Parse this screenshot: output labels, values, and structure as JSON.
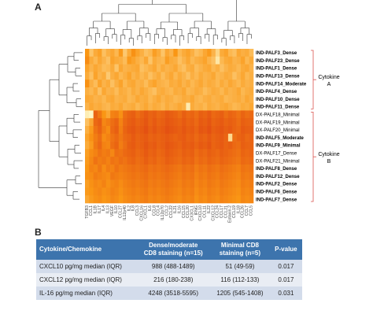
{
  "panel_a_letter": "A",
  "panel_b_letter": "B",
  "chart_data": {
    "type": "heatmap",
    "title": "",
    "rows": [
      {
        "label": "IND-PALF3_Dense",
        "bold": true
      },
      {
        "label": "IND-PALF23_Dense",
        "bold": true
      },
      {
        "label": "IND-PALF1_Dense",
        "bold": true
      },
      {
        "label": "IND-PALF13_Dense",
        "bold": true
      },
      {
        "label": "IND-PALF14_Moderate",
        "bold": true
      },
      {
        "label": "IND-PALF4_Dense",
        "bold": true
      },
      {
        "label": "IND-PALF10_Dense",
        "bold": true
      },
      {
        "label": "IND-PALF11_Dense",
        "bold": true
      },
      {
        "label": "DX-PALF18_Minimal",
        "bold": false
      },
      {
        "label": "DX-PALF19_Minimal",
        "bold": false
      },
      {
        "label": "DX-PALF20_Minimal",
        "bold": false
      },
      {
        "label": "IND-PALF5_Moderate",
        "bold": true
      },
      {
        "label": "IND-PALF9_Minimal",
        "bold": true
      },
      {
        "label": "DX-PALF17_Dense",
        "bold": false
      },
      {
        "label": "DX-PALF21_Minimal",
        "bold": false
      },
      {
        "label": "IND-PALF8_Dense",
        "bold": true
      },
      {
        "label": "IND-PALF12_Dense",
        "bold": true
      },
      {
        "label": "IND-PALF2_Dense",
        "bold": true
      },
      {
        "label": "IND-PALF6_Dense",
        "bold": true
      },
      {
        "label": "IND-PALF7_Dense",
        "bold": true
      }
    ],
    "columns": [
      "TGFB3",
      "CCL1",
      "IL1B",
      "IL17",
      "IL4",
      "IL13",
      "VEGF",
      "IL10",
      "CCL27",
      "IL12p40",
      "IL2",
      "IL8",
      "CCL3",
      "CXCL16",
      "CXCL1",
      "IL6",
      "CCL8",
      "CCL4",
      "IL12p70",
      "CCL2",
      "CCL22",
      "IL21",
      "IL16",
      "CCL15",
      "CCL20",
      "CX3CL1",
      "IFNG",
      "CXCL10",
      "CCL11",
      "IL22",
      "CXCL12",
      "CCL24",
      "CCL17",
      "CCL21",
      "Eotaxin-2",
      "CCL19",
      "IL18",
      "CCL26",
      "CCL7",
      "CCL5"
    ],
    "values": [
      [
        0.5,
        0.72,
        0.6,
        0.55,
        0.7,
        0.62,
        0.58,
        0.66,
        0.52,
        0.74,
        0.6,
        0.48,
        0.56,
        0.62,
        0.7,
        0.66,
        0.54,
        0.6,
        0.72,
        0.58,
        0.64,
        0.5,
        0.66,
        0.6,
        0.56,
        0.62,
        0.7,
        0.66,
        0.58,
        0.52,
        0.64,
        0.8,
        0.6,
        0.56,
        0.66,
        0.7,
        0.58,
        0.62,
        0.6,
        0.68
      ],
      [
        0.46,
        0.6,
        0.66,
        0.58,
        0.64,
        0.7,
        0.56,
        0.6,
        0.62,
        0.68,
        0.52,
        0.56,
        0.62,
        0.66,
        0.58,
        0.72,
        0.6,
        0.64,
        0.66,
        0.54,
        0.6,
        0.62,
        0.7,
        0.64,
        0.58,
        0.66,
        0.62,
        0.6,
        0.56,
        0.64,
        0.7,
        0.88,
        0.66,
        0.6,
        0.58,
        0.64,
        0.62,
        0.56,
        0.66,
        0.6
      ],
      [
        0.56,
        0.64,
        0.58,
        0.62,
        0.68,
        0.66,
        0.6,
        0.72,
        0.58,
        0.64,
        0.62,
        0.6,
        0.58,
        0.7,
        0.66,
        0.62,
        0.58,
        0.66,
        0.6,
        0.64,
        0.62,
        0.58,
        0.66,
        0.7,
        0.62,
        0.6,
        0.68,
        0.64,
        0.6,
        0.58,
        0.66,
        0.62,
        0.7,
        0.64,
        0.6,
        0.62,
        0.66,
        0.6,
        0.58,
        0.64
      ],
      [
        0.6,
        0.7,
        0.56,
        0.64,
        0.6,
        0.74,
        0.62,
        0.58,
        0.66,
        0.62,
        0.56,
        0.64,
        0.6,
        0.66,
        0.62,
        0.7,
        0.64,
        0.6,
        0.68,
        0.62,
        0.58,
        0.66,
        0.6,
        0.64,
        0.7,
        0.62,
        0.66,
        0.6,
        0.64,
        0.62,
        0.58,
        0.66,
        0.64,
        0.6,
        0.62,
        0.7,
        0.64,
        0.58,
        0.66,
        0.62
      ],
      [
        0.48,
        0.62,
        0.68,
        0.56,
        0.64,
        0.6,
        0.7,
        0.62,
        0.56,
        0.66,
        0.6,
        0.58,
        0.64,
        0.62,
        0.68,
        0.6,
        0.56,
        0.62,
        0.64,
        0.66,
        0.6,
        0.62,
        0.58,
        0.64,
        0.6,
        0.66,
        0.62,
        0.58,
        0.64,
        0.6,
        0.62,
        0.66,
        0.6,
        0.64,
        0.58,
        0.62,
        0.66,
        0.6,
        0.64,
        0.62
      ],
      [
        0.62,
        0.66,
        0.6,
        0.7,
        0.58,
        0.64,
        0.62,
        0.68,
        0.6,
        0.62,
        0.66,
        0.6,
        0.64,
        0.58,
        0.62,
        0.66,
        0.7,
        0.62,
        0.6,
        0.64,
        0.66,
        0.6,
        0.62,
        0.58,
        0.66,
        0.64,
        0.6,
        0.62,
        0.68,
        0.64,
        0.6,
        0.62,
        0.66,
        0.6,
        0.64,
        0.62,
        0.58,
        0.66,
        0.62,
        0.6
      ],
      [
        0.58,
        0.6,
        0.64,
        0.62,
        0.66,
        0.6,
        0.58,
        0.64,
        0.62,
        0.6,
        0.66,
        0.64,
        0.58,
        0.62,
        0.6,
        0.66,
        0.62,
        0.58,
        0.64,
        0.6,
        0.62,
        0.66,
        0.64,
        0.6,
        0.62,
        0.58,
        0.64,
        0.66,
        0.62,
        0.6,
        0.64,
        0.62,
        0.6,
        0.66,
        0.64,
        0.62,
        0.6,
        0.64,
        0.58,
        0.62
      ],
      [
        0.64,
        0.58,
        0.62,
        0.6,
        0.64,
        0.66,
        0.6,
        0.62,
        0.58,
        0.64,
        0.62,
        0.6,
        0.66,
        0.62,
        0.58,
        0.64,
        0.6,
        0.62,
        0.66,
        0.6,
        0.64,
        0.62,
        0.58,
        0.62,
        0.9,
        0.6,
        0.64,
        0.62,
        0.66,
        0.6,
        0.62,
        0.64,
        0.6,
        0.58,
        0.62,
        0.66,
        0.64,
        0.6,
        0.62,
        0.58
      ],
      [
        0.92,
        0.96,
        0.3,
        0.38,
        0.5,
        0.58,
        0.42,
        0.4,
        0.48,
        0.34,
        0.3,
        0.28,
        0.34,
        0.3,
        0.26,
        0.3,
        0.28,
        0.32,
        0.3,
        0.26,
        0.28,
        0.3,
        0.34,
        0.28,
        0.32,
        0.3,
        0.34,
        0.28,
        0.3,
        0.26,
        0.32,
        0.3,
        0.28,
        0.34,
        0.3,
        0.32,
        0.36,
        0.3,
        0.34,
        0.32
      ],
      [
        0.7,
        0.58,
        0.32,
        0.28,
        0.44,
        0.4,
        0.34,
        0.3,
        0.42,
        0.32,
        0.28,
        0.26,
        0.3,
        0.28,
        0.24,
        0.3,
        0.26,
        0.3,
        0.28,
        0.24,
        0.26,
        0.28,
        0.3,
        0.26,
        0.3,
        0.28,
        0.32,
        0.26,
        0.28,
        0.24,
        0.3,
        0.28,
        0.26,
        0.3,
        0.28,
        0.3,
        0.34,
        0.28,
        0.3,
        0.3
      ],
      [
        0.62,
        0.52,
        0.36,
        0.3,
        0.4,
        0.46,
        0.32,
        0.28,
        0.4,
        0.3,
        0.26,
        0.24,
        0.28,
        0.26,
        0.22,
        0.28,
        0.24,
        0.28,
        0.26,
        0.22,
        0.24,
        0.26,
        0.28,
        0.24,
        0.28,
        0.26,
        0.3,
        0.24,
        0.26,
        0.22,
        0.28,
        0.26,
        0.24,
        0.28,
        0.26,
        0.3,
        0.32,
        0.26,
        0.28,
        0.28
      ],
      [
        0.56,
        0.48,
        0.4,
        0.34,
        0.46,
        0.42,
        0.36,
        0.32,
        0.38,
        0.32,
        0.3,
        0.26,
        0.3,
        0.28,
        0.26,
        0.3,
        0.28,
        0.3,
        0.28,
        0.26,
        0.28,
        0.3,
        0.28,
        0.26,
        0.3,
        0.28,
        0.32,
        0.28,
        0.3,
        0.26,
        0.3,
        0.28,
        0.26,
        0.3,
        0.82,
        0.34,
        0.3,
        0.28,
        0.32,
        0.3
      ],
      [
        0.6,
        0.52,
        0.38,
        0.32,
        0.42,
        0.44,
        0.34,
        0.3,
        0.4,
        0.34,
        0.28,
        0.26,
        0.3,
        0.28,
        0.24,
        0.28,
        0.26,
        0.3,
        0.28,
        0.24,
        0.26,
        0.28,
        0.3,
        0.26,
        0.28,
        0.26,
        0.3,
        0.26,
        0.28,
        0.24,
        0.3,
        0.28,
        0.26,
        0.3,
        0.28,
        0.32,
        0.34,
        0.28,
        0.3,
        0.3
      ],
      [
        0.54,
        0.46,
        0.42,
        0.36,
        0.4,
        0.38,
        0.44,
        0.34,
        0.36,
        0.32,
        0.3,
        0.28,
        0.32,
        0.3,
        0.26,
        0.3,
        0.28,
        0.32,
        0.3,
        0.26,
        0.28,
        0.3,
        0.32,
        0.28,
        0.3,
        0.28,
        0.34,
        0.3,
        0.32,
        0.28,
        0.3,
        0.32,
        0.28,
        0.3,
        0.32,
        0.34,
        0.36,
        0.3,
        0.32,
        0.3
      ],
      [
        0.52,
        0.44,
        0.36,
        0.4,
        0.38,
        0.42,
        0.36,
        0.38,
        0.34,
        0.36,
        0.32,
        0.3,
        0.34,
        0.32,
        0.28,
        0.32,
        0.3,
        0.34,
        0.32,
        0.28,
        0.3,
        0.32,
        0.34,
        0.3,
        0.32,
        0.3,
        0.36,
        0.32,
        0.34,
        0.3,
        0.32,
        0.34,
        0.3,
        0.32,
        0.34,
        0.36,
        0.38,
        0.32,
        0.34,
        0.32
      ],
      [
        0.5,
        0.42,
        0.44,
        0.38,
        0.46,
        0.4,
        0.42,
        0.36,
        0.4,
        0.38,
        0.36,
        0.34,
        0.36,
        0.34,
        0.32,
        0.36,
        0.34,
        0.36,
        0.34,
        0.32,
        0.34,
        0.36,
        0.38,
        0.34,
        0.36,
        0.34,
        0.4,
        0.36,
        0.38,
        0.34,
        0.36,
        0.38,
        0.34,
        0.36,
        0.38,
        0.4,
        0.42,
        0.36,
        0.38,
        0.36
      ],
      [
        0.48,
        0.46,
        0.4,
        0.42,
        0.44,
        0.46,
        0.38,
        0.4,
        0.42,
        0.4,
        0.38,
        0.36,
        0.38,
        0.36,
        0.34,
        0.38,
        0.36,
        0.38,
        0.36,
        0.34,
        0.36,
        0.38,
        0.4,
        0.36,
        0.38,
        0.36,
        0.42,
        0.38,
        0.4,
        0.36,
        0.38,
        0.4,
        0.36,
        0.38,
        0.4,
        0.42,
        0.44,
        0.38,
        0.4,
        0.38
      ],
      [
        0.54,
        0.48,
        0.44,
        0.46,
        0.42,
        0.48,
        0.44,
        0.42,
        0.46,
        0.42,
        0.4,
        0.38,
        0.4,
        0.38,
        0.36,
        0.4,
        0.38,
        0.4,
        0.38,
        0.36,
        0.38,
        0.4,
        0.42,
        0.38,
        0.4,
        0.38,
        0.44,
        0.4,
        0.42,
        0.38,
        0.4,
        0.42,
        0.38,
        0.4,
        0.42,
        0.44,
        0.46,
        0.4,
        0.42,
        0.4
      ],
      [
        0.52,
        0.5,
        0.46,
        0.44,
        0.48,
        0.46,
        0.42,
        0.44,
        0.48,
        0.44,
        0.42,
        0.4,
        0.42,
        0.4,
        0.38,
        0.42,
        0.4,
        0.42,
        0.4,
        0.38,
        0.4,
        0.42,
        0.44,
        0.4,
        0.42,
        0.4,
        0.46,
        0.42,
        0.44,
        0.4,
        0.42,
        0.44,
        0.4,
        0.42,
        0.44,
        0.46,
        0.48,
        0.42,
        0.44,
        0.42
      ],
      [
        0.58,
        0.52,
        0.48,
        0.46,
        0.5,
        0.48,
        0.44,
        0.46,
        0.5,
        0.46,
        0.44,
        0.42,
        0.44,
        0.42,
        0.4,
        0.44,
        0.42,
        0.44,
        0.42,
        0.4,
        0.42,
        0.44,
        0.46,
        0.42,
        0.44,
        0.42,
        0.48,
        0.44,
        0.46,
        0.42,
        0.44,
        0.46,
        0.42,
        0.44,
        0.46,
        0.48,
        0.5,
        0.44,
        0.46,
        0.44
      ]
    ],
    "groups": [
      {
        "label_line1": "Cytokine",
        "label_line2": "A",
        "color": "#d9534f"
      },
      {
        "label_line1": "Cytokine",
        "label_line2": "B",
        "color": "#d9534f"
      }
    ],
    "color_low": "#d21a10",
    "color_high": "#ffffd4"
  },
  "table": {
    "header": {
      "col1": "Cytokine/Chemokine",
      "col2_line1": "Dense/moderate",
      "col2_line2": "CD8 staining (n=15)",
      "col3_line1": "Minimal CD8",
      "col3_line2": "staining (n=5)",
      "col4": "P-value"
    },
    "rows": [
      {
        "name": "CXCL10 pg/mg median (IQR)",
        "dense": "988 (488-1489)",
        "minimal": "51 (49-59)",
        "p": "0.017"
      },
      {
        "name": "CXCL12 pg/mg median (IQR)",
        "dense": "216 (180-238)",
        "minimal": "116 (112-133)",
        "p": "0.017"
      },
      {
        "name": "IL-16 pg/mg median (IQR)",
        "dense": "4248 (3518-5595)",
        "minimal": "1205 (545-1408)",
        "p": "0.031"
      }
    ],
    "header_color": "#3d74ad",
    "row_colors": [
      "#d3dceb",
      "#e9edf4"
    ]
  }
}
